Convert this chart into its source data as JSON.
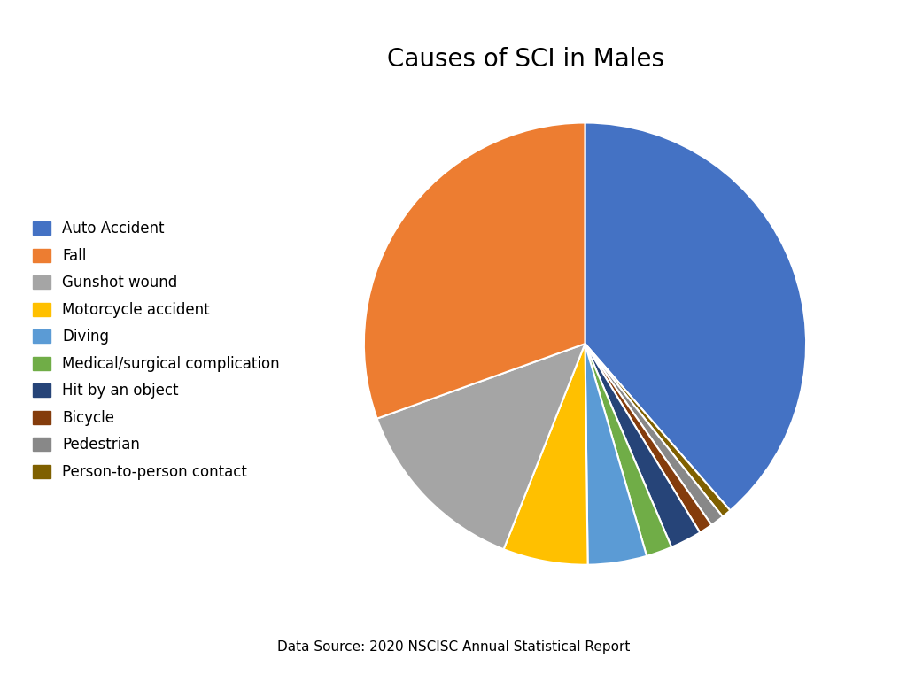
{
  "title": "Causes of SCI in Males",
  "source": "Data Source: 2020 NSCISC Annual Statistical Report",
  "labels": [
    "Auto Accident",
    "Fall",
    "Gunshot wound",
    "Motorcycle accident",
    "Diving",
    "Medical/surgical complication",
    "Hit by an object",
    "Bicycle",
    "Pedestrian",
    "Person-to-person contact"
  ],
  "values": [
    38.6,
    30.5,
    13.5,
    6.2,
    4.3,
    1.9,
    2.3,
    1.0,
    1.0,
    0.7
  ],
  "colors": [
    "#4472C4",
    "#ED7D31",
    "#A5A5A5",
    "#FFC000",
    "#5B9BD5",
    "#70AD47",
    "#264478",
    "#843C0C",
    "#888888",
    "#7F6000"
  ],
  "pie_order": [
    0,
    9,
    8,
    7,
    6,
    5,
    4,
    3,
    2,
    1
  ],
  "background_color": "#FFFFFF",
  "title_fontsize": 20,
  "legend_fontsize": 12,
  "source_fontsize": 11
}
